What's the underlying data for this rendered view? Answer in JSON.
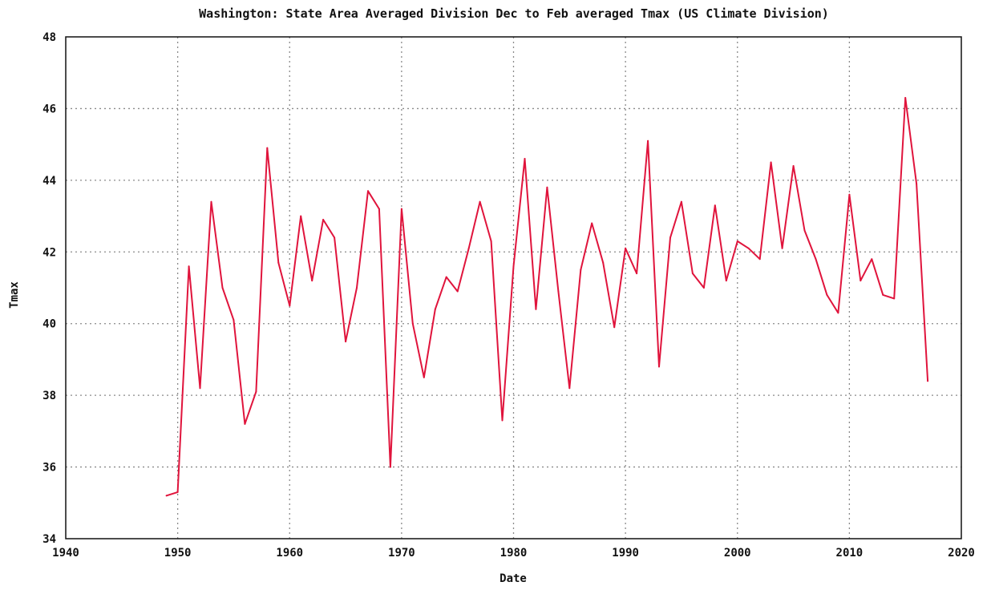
{
  "chart_data": {
    "type": "line",
    "title": "Washington: State Area Averaged Division  Dec to Feb averaged  Tmax  (US Climate Division)",
    "xlabel": "Date",
    "ylabel": "Tmax",
    "xlim": [
      1940,
      2020
    ],
    "ylim": [
      34,
      48
    ],
    "xticks": [
      "1940",
      "1950",
      "1960",
      "1970",
      "1980",
      "1990",
      "2000",
      "2010",
      "2020"
    ],
    "yticks": [
      "34",
      "36",
      "38",
      "40",
      "42",
      "44",
      "46",
      "48"
    ],
    "grid": true,
    "color": "#e0143c",
    "series": [
      {
        "x": [
          1949,
          1950,
          1951,
          1952,
          1953,
          1954,
          1955,
          1956,
          1957,
          1958,
          1959,
          1960,
          1961,
          1962,
          1963,
          1964,
          1965,
          1966,
          1967,
          1968,
          1969,
          1970,
          1971,
          1972,
          1973,
          1974,
          1975,
          1976,
          1977,
          1978,
          1979,
          1980,
          1981,
          1982,
          1983,
          1984,
          1985,
          1986,
          1987,
          1988,
          1989,
          1990,
          1991,
          1992,
          1993,
          1994,
          1995,
          1996,
          1997,
          1998,
          1999,
          2000,
          2001,
          2002,
          2003,
          2004,
          2005,
          2006,
          2007,
          2008,
          2009,
          2010,
          2011,
          2012,
          2013,
          2014,
          2015,
          2016,
          2017
        ],
        "y": [
          35.2,
          35.3,
          41.6,
          38.2,
          43.4,
          41.0,
          40.1,
          37.2,
          38.1,
          44.9,
          41.7,
          40.5,
          43.0,
          41.2,
          42.9,
          42.4,
          39.5,
          41.0,
          43.7,
          43.2,
          36.0,
          43.2,
          40.0,
          38.5,
          40.4,
          41.3,
          40.9,
          42.1,
          43.4,
          42.3,
          37.3,
          41.6,
          44.6,
          40.4,
          43.8,
          40.9,
          38.2,
          41.5,
          42.8,
          41.7,
          39.9,
          42.1,
          41.4,
          45.1,
          38.8,
          42.4,
          43.4,
          41.4,
          41.0,
          43.3,
          41.2,
          42.3,
          42.1,
          41.8,
          44.5,
          42.1,
          44.4,
          42.6,
          41.8,
          40.8,
          40.3,
          43.6,
          41.2,
          41.8,
          40.8,
          40.7,
          46.3,
          43.9,
          38.4
        ]
      }
    ]
  }
}
